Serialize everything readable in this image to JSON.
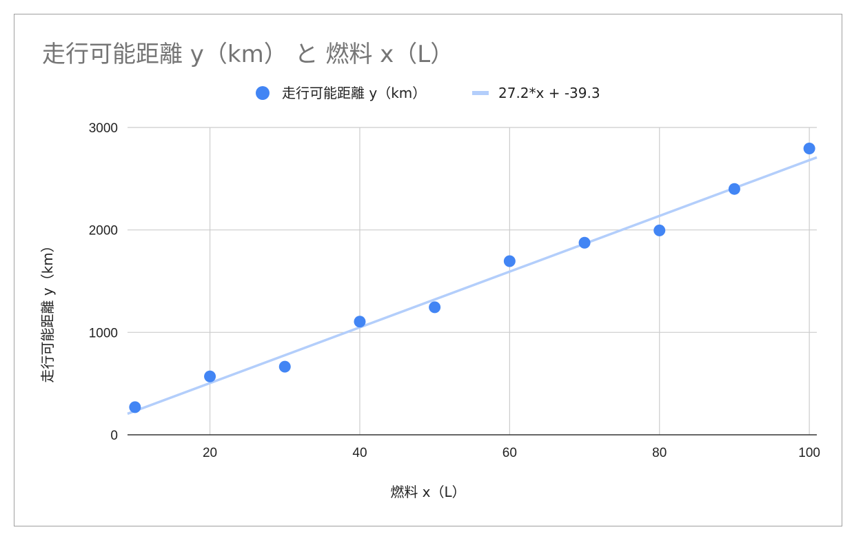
{
  "chart_data": {
    "type": "scatter",
    "title": "走行可能距離 y（km） と 燃料 x（L）",
    "xlabel": "燃料 x（L）",
    "ylabel": "走行可能距離 y（km）",
    "xlim": [
      9,
      101
    ],
    "ylim": [
      0,
      3000
    ],
    "x_ticks": [
      20,
      40,
      60,
      80,
      100
    ],
    "y_ticks": [
      0,
      1000,
      2000,
      3000
    ],
    "grid": true,
    "legend_position": "top",
    "series": [
      {
        "name": "走行可能距離 y（km）",
        "color": "#4285f4",
        "points": [
          {
            "x": 10,
            "y": 270
          },
          {
            "x": 20,
            "y": 570
          },
          {
            "x": 30,
            "y": 665
          },
          {
            "x": 40,
            "y": 1105
          },
          {
            "x": 50,
            "y": 1245
          },
          {
            "x": 60,
            "y": 1695
          },
          {
            "x": 70,
            "y": 1875
          },
          {
            "x": 80,
            "y": 1995
          },
          {
            "x": 90,
            "y": 2400
          },
          {
            "x": 100,
            "y": 2795
          }
        ]
      }
    ],
    "trendline": {
      "name": "27.2*x + -39.3",
      "slope": 27.2,
      "intercept": -39.3,
      "color": "#b3cefb"
    }
  }
}
